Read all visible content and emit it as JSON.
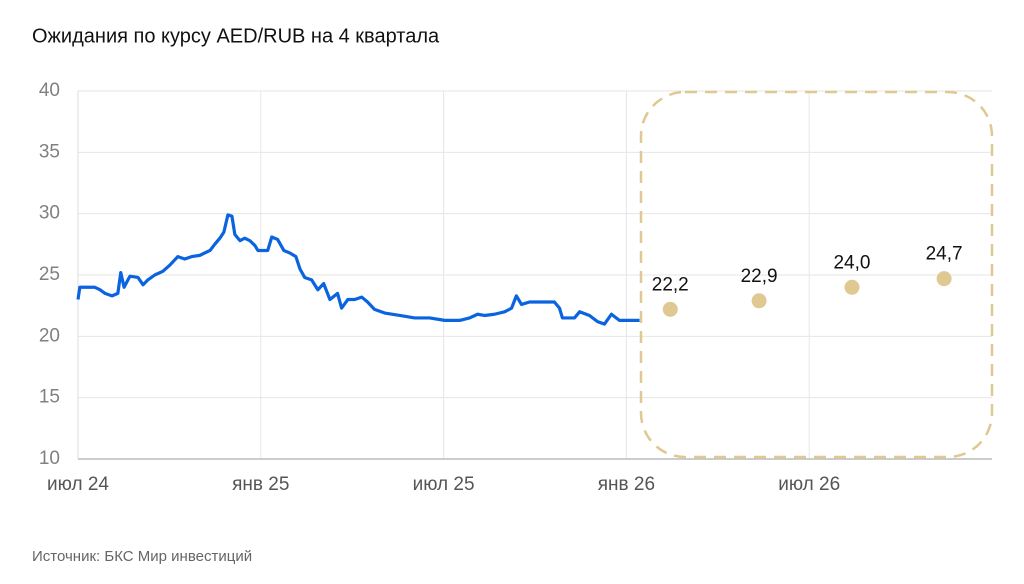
{
  "chart_data": {
    "type": "line",
    "title": "Ожидания по курсу AED/RUB на 4 квартала",
    "source": "Источник: БКС Мир инвестиций",
    "xlim": [
      2024.5,
      2027.0
    ],
    "xticks": [
      {
        "value": 2024.5,
        "label": "июл 24"
      },
      {
        "value": 2025.0,
        "label": "янв 25"
      },
      {
        "value": 2025.5,
        "label": "июл 25"
      },
      {
        "value": 2026.0,
        "label": "янв 26"
      },
      {
        "value": 2026.5,
        "label": "июл 26"
      }
    ],
    "ylim": [
      10,
      40
    ],
    "yticks": [
      10,
      15,
      20,
      25,
      30,
      35,
      40
    ],
    "grid": true,
    "series": [
      {
        "color": "#0a64e0",
        "mode": "line",
        "x": [
          2024.5,
          2024.505,
          2024.546,
          2024.56,
          2024.574,
          2024.593,
          2024.609,
          2024.617,
          2024.626,
          2024.642,
          2024.664,
          2024.678,
          2024.691,
          2024.71,
          2024.732,
          2024.751,
          2024.773,
          2024.792,
          2024.811,
          2024.833,
          2024.861,
          2024.874,
          2024.888,
          2024.899,
          2024.91,
          2024.921,
          2024.929,
          2024.943,
          2024.956,
          2024.97,
          2024.984,
          2024.992,
          2025.019,
          2025.03,
          2025.046,
          2025.063,
          2025.079,
          2025.096,
          2025.107,
          2025.12,
          2025.139,
          2025.156,
          2025.172,
          2025.189,
          2025.21,
          2025.221,
          2025.238,
          2025.257,
          2025.276,
          2025.292,
          2025.311,
          2025.339,
          2025.38,
          2025.421,
          2025.462,
          2025.503,
          2025.544,
          2025.571,
          2025.593,
          2025.612,
          2025.639,
          2025.667,
          2025.686,
          2025.699,
          2025.713,
          2025.735,
          2025.776,
          2025.803,
          2025.817,
          2025.825,
          2025.858,
          2025.872,
          2025.899,
          2025.921,
          2025.94,
          2025.959,
          2025.981,
          2026.036
        ],
        "values": [
          23.0,
          24.0,
          24.0,
          23.8,
          23.5,
          23.3,
          23.5,
          25.2,
          24.0,
          24.9,
          24.8,
          24.2,
          24.6,
          25.0,
          25.3,
          25.8,
          26.5,
          26.3,
          26.5,
          26.6,
          27.0,
          27.5,
          28.0,
          28.5,
          29.9,
          29.8,
          28.3,
          27.8,
          28.0,
          27.8,
          27.4,
          27.0,
          27.0,
          28.1,
          27.9,
          27.0,
          26.8,
          26.5,
          25.5,
          24.8,
          24.6,
          23.8,
          24.3,
          23.0,
          23.5,
          22.3,
          23.0,
          23.0,
          23.2,
          22.8,
          22.2,
          21.9,
          21.7,
          21.5,
          21.5,
          21.3,
          21.3,
          21.5,
          21.8,
          21.7,
          21.8,
          22.0,
          22.3,
          23.3,
          22.6,
          22.8,
          22.8,
          22.8,
          22.3,
          21.5,
          21.5,
          22.0,
          21.7,
          21.2,
          21.0,
          21.8,
          21.3,
          21.3
        ]
      },
      {
        "color": "#e0c893",
        "mode": "points",
        "x": [
          2026.12,
          2026.363,
          2026.617,
          2026.869
        ],
        "values": [
          22.2,
          22.9,
          24.0,
          24.7
        ],
        "value_labels": [
          "22,2",
          "22,9",
          "24,0",
          "24,7"
        ]
      }
    ]
  }
}
